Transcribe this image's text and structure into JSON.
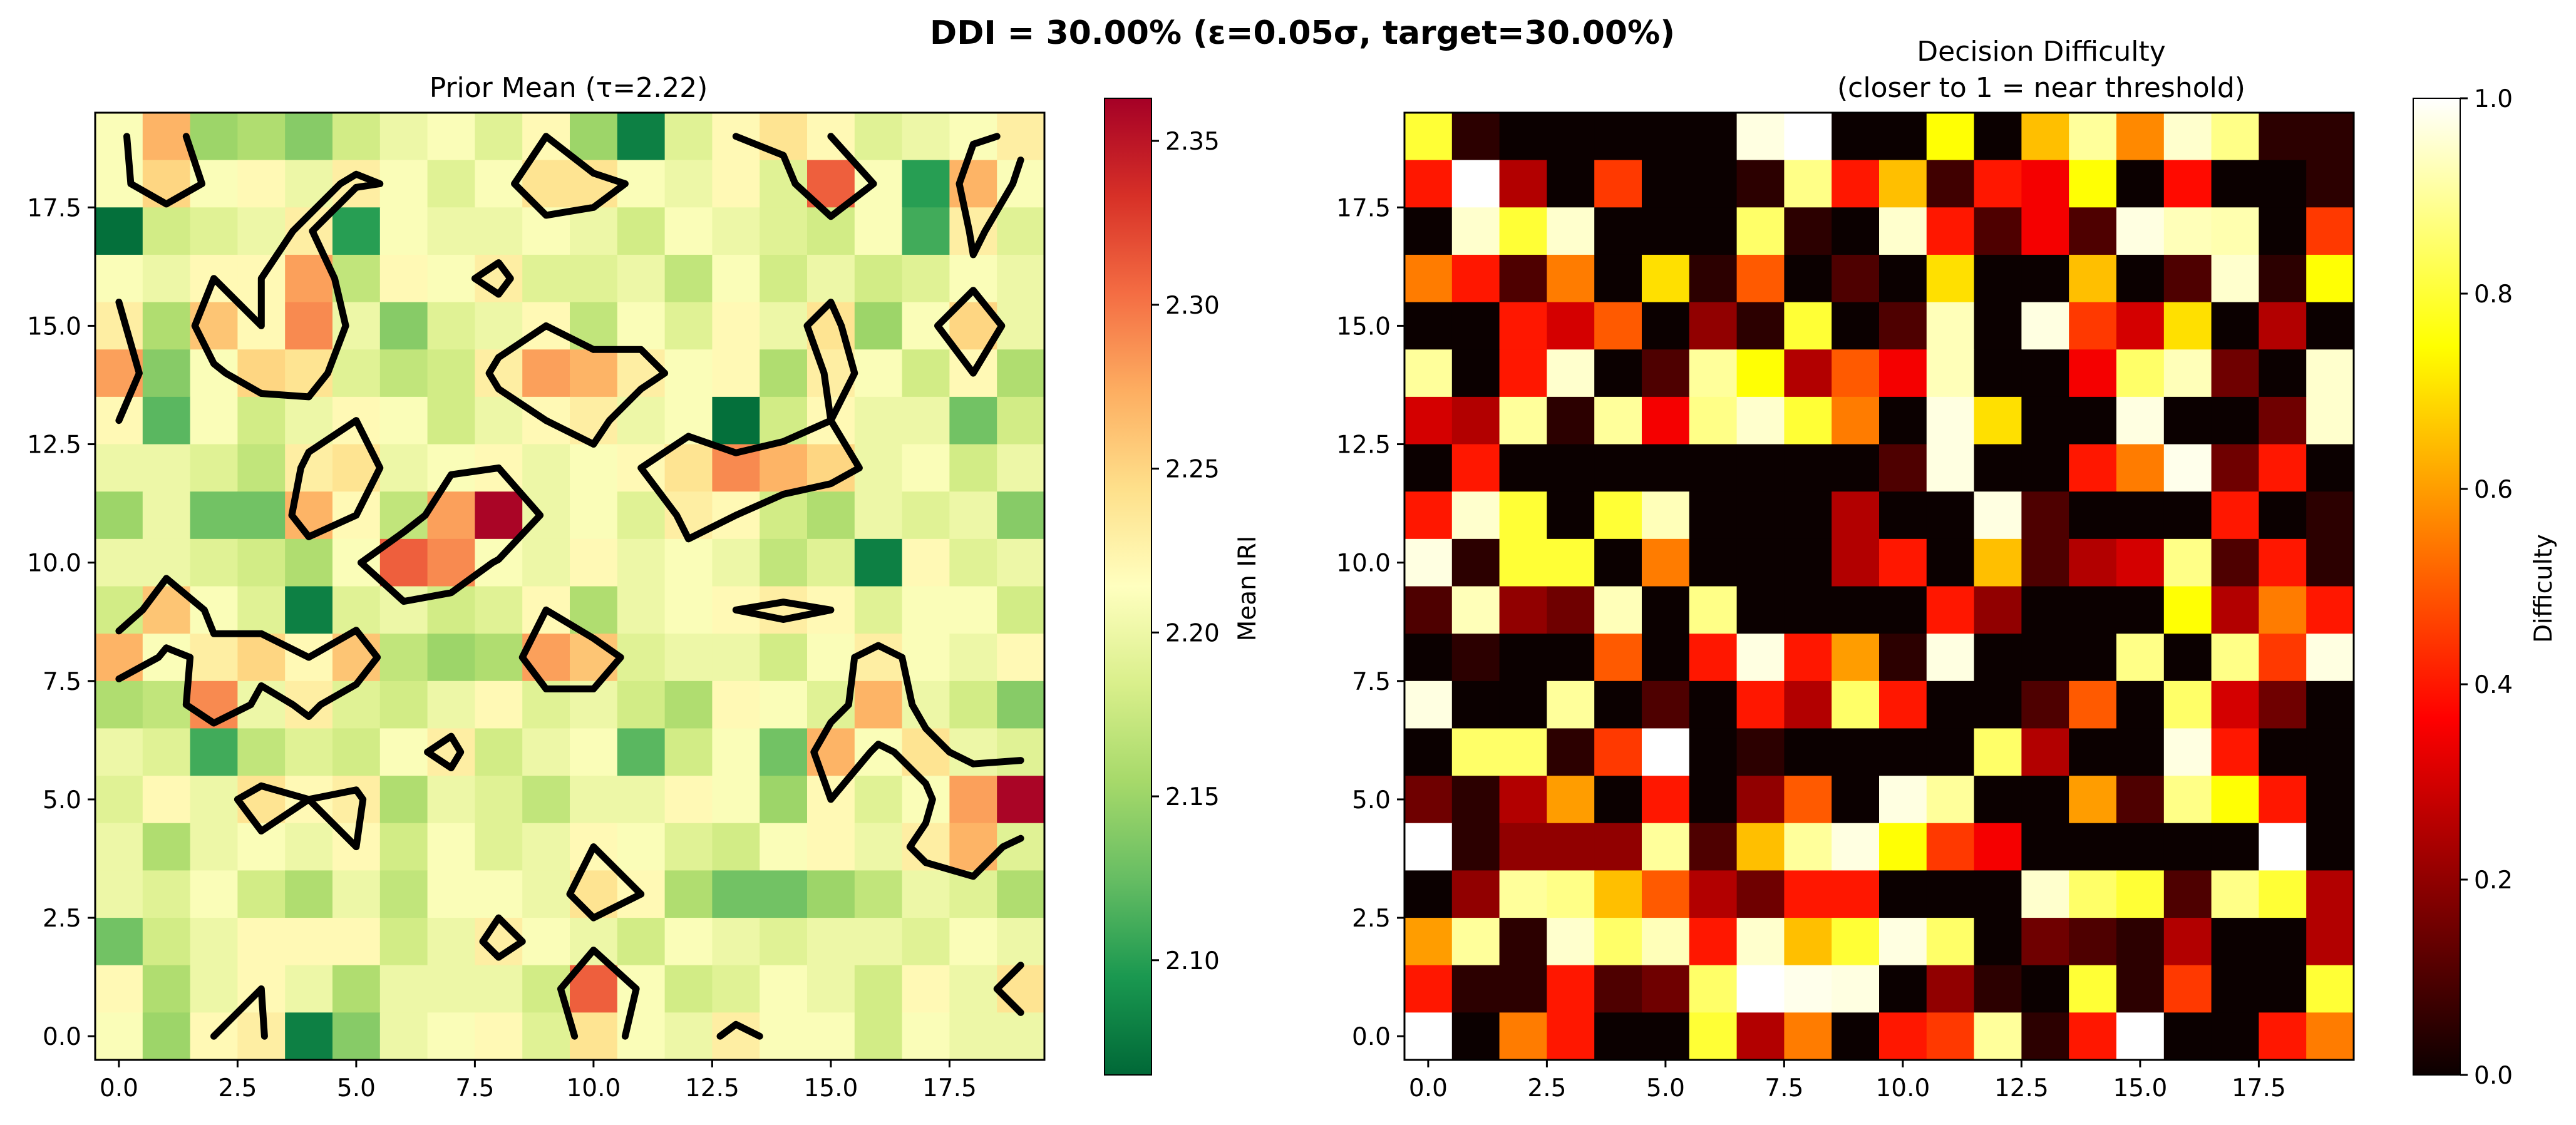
{
  "figure": {
    "suptitle": "DDI = 30.00% (ε=0.05σ, target=30.00%)"
  },
  "chart_data": [
    {
      "type": "heatmap",
      "title": "Prior Mean (τ=2.22)",
      "colormap": "RdYlGn_r",
      "xlim": [
        -0.5,
        19.5
      ],
      "ylim": [
        -0.5,
        19.5
      ],
      "x_ticks": [
        "0.0",
        "2.5",
        "5.0",
        "7.5",
        "10.0",
        "12.5",
        "15.0",
        "17.5"
      ],
      "y_ticks": [
        "0.0",
        "2.5",
        "5.0",
        "7.5",
        "10.0",
        "12.5",
        "15.0",
        "17.5"
      ],
      "colorbar_label": "Mean IRI",
      "colorbar_range": [
        2.065,
        2.363
      ],
      "colorbar_ticks": [
        "2.10",
        "2.15",
        "2.20",
        "2.25",
        "2.30",
        "2.35"
      ],
      "contour_level": 2.22,
      "contour_color": "#000000",
      "values_rows_top_to_bottom": [
        [
          2.21,
          2.27,
          2.15,
          2.16,
          2.14,
          2.18,
          2.2,
          2.21,
          2.19,
          2.22,
          2.15,
          2.08,
          2.19,
          2.22,
          2.24,
          2.22,
          2.19,
          2.2,
          2.21,
          2.23
        ],
        [
          2.21,
          2.25,
          2.21,
          2.22,
          2.2,
          2.23,
          2.21,
          2.19,
          2.21,
          2.24,
          2.24,
          2.21,
          2.2,
          2.22,
          2.19,
          2.31,
          2.21,
          2.1,
          2.27,
          2.21
        ],
        [
          2.07,
          2.18,
          2.19,
          2.2,
          2.23,
          2.1,
          2.21,
          2.2,
          2.2,
          2.21,
          2.2,
          2.18,
          2.21,
          2.2,
          2.19,
          2.18,
          2.21,
          2.11,
          2.23,
          2.19
        ],
        [
          2.21,
          2.2,
          2.22,
          2.22,
          2.28,
          2.17,
          2.22,
          2.21,
          2.23,
          2.19,
          2.19,
          2.2,
          2.17,
          2.21,
          2.18,
          2.2,
          2.18,
          2.19,
          2.21,
          2.2
        ],
        [
          2.23,
          2.16,
          2.26,
          2.22,
          2.29,
          2.2,
          2.14,
          2.19,
          2.2,
          2.22,
          2.17,
          2.21,
          2.19,
          2.22,
          2.2,
          2.24,
          2.15,
          2.21,
          2.25,
          2.2
        ],
        [
          2.28,
          2.14,
          2.21,
          2.25,
          2.24,
          2.19,
          2.17,
          2.18,
          2.23,
          2.28,
          2.27,
          2.23,
          2.21,
          2.22,
          2.16,
          2.23,
          2.21,
          2.18,
          2.22,
          2.16
        ],
        [
          2.22,
          2.12,
          2.21,
          2.18,
          2.2,
          2.22,
          2.21,
          2.18,
          2.2,
          2.22,
          2.23,
          2.2,
          2.21,
          2.07,
          2.18,
          2.22,
          2.2,
          2.2,
          2.13,
          2.18
        ],
        [
          2.2,
          2.2,
          2.19,
          2.17,
          2.23,
          2.24,
          2.2,
          2.21,
          2.22,
          2.2,
          2.21,
          2.22,
          2.24,
          2.29,
          2.27,
          2.25,
          2.2,
          2.21,
          2.18,
          2.2
        ],
        [
          2.15,
          2.2,
          2.13,
          2.13,
          2.27,
          2.22,
          2.17,
          2.28,
          2.36,
          2.2,
          2.21,
          2.19,
          2.23,
          2.22,
          2.18,
          2.16,
          2.2,
          2.19,
          2.2,
          2.14
        ],
        [
          2.2,
          2.2,
          2.19,
          2.18,
          2.16,
          2.21,
          2.31,
          2.29,
          2.21,
          2.2,
          2.22,
          2.2,
          2.21,
          2.2,
          2.17,
          2.19,
          2.08,
          2.22,
          2.19,
          2.2
        ],
        [
          2.18,
          2.26,
          2.21,
          2.19,
          2.08,
          2.19,
          2.2,
          2.18,
          2.19,
          2.22,
          2.16,
          2.2,
          2.21,
          2.22,
          2.23,
          2.22,
          2.19,
          2.21,
          2.21,
          2.18
        ],
        [
          2.27,
          2.21,
          2.23,
          2.25,
          2.22,
          2.26,
          2.17,
          2.15,
          2.16,
          2.28,
          2.26,
          2.19,
          2.2,
          2.2,
          2.18,
          2.21,
          2.23,
          2.21,
          2.2,
          2.22
        ],
        [
          2.16,
          2.17,
          2.29,
          2.2,
          2.23,
          2.19,
          2.18,
          2.2,
          2.22,
          2.19,
          2.2,
          2.18,
          2.16,
          2.22,
          2.21,
          2.19,
          2.27,
          2.2,
          2.18,
          2.14
        ],
        [
          2.2,
          2.19,
          2.11,
          2.17,
          2.19,
          2.18,
          2.21,
          2.23,
          2.18,
          2.2,
          2.21,
          2.12,
          2.18,
          2.21,
          2.13,
          2.27,
          2.21,
          2.24,
          2.2,
          2.19
        ],
        [
          2.19,
          2.22,
          2.2,
          2.24,
          2.22,
          2.23,
          2.16,
          2.2,
          2.19,
          2.17,
          2.2,
          2.2,
          2.22,
          2.21,
          2.15,
          2.22,
          2.19,
          2.21,
          2.28,
          2.36
        ],
        [
          2.2,
          2.16,
          2.2,
          2.21,
          2.2,
          2.22,
          2.18,
          2.21,
          2.19,
          2.2,
          2.22,
          2.21,
          2.19,
          2.18,
          2.21,
          2.22,
          2.2,
          2.23,
          2.27,
          2.19
        ],
        [
          2.2,
          2.19,
          2.21,
          2.18,
          2.16,
          2.2,
          2.17,
          2.21,
          2.21,
          2.2,
          2.24,
          2.22,
          2.16,
          2.13,
          2.13,
          2.15,
          2.17,
          2.2,
          2.19,
          2.16
        ],
        [
          2.13,
          2.18,
          2.2,
          2.22,
          2.22,
          2.22,
          2.18,
          2.2,
          2.23,
          2.21,
          2.2,
          2.18,
          2.21,
          2.2,
          2.19,
          2.2,
          2.2,
          2.19,
          2.21,
          2.2
        ],
        [
          2.22,
          2.16,
          2.2,
          2.22,
          2.2,
          2.16,
          2.2,
          2.2,
          2.2,
          2.18,
          2.31,
          2.21,
          2.18,
          2.19,
          2.21,
          2.2,
          2.18,
          2.22,
          2.2,
          2.24
        ],
        [
          2.21,
          2.15,
          2.22,
          2.23,
          2.08,
          2.14,
          2.2,
          2.21,
          2.22,
          2.19,
          2.24,
          2.21,
          2.2,
          2.23,
          2.21,
          2.21,
          2.18,
          2.21,
          2.2,
          2.2
        ]
      ]
    },
    {
      "type": "heatmap",
      "title": "Decision Difficulty",
      "subtitle": "(closer to 1 = near threshold)",
      "colormap": "hot",
      "xlim": [
        -0.5,
        19.5
      ],
      "ylim": [
        -0.5,
        19.5
      ],
      "x_ticks": [
        "0.0",
        "2.5",
        "5.0",
        "7.5",
        "10.0",
        "12.5",
        "15.0",
        "17.5"
      ],
      "y_ticks": [
        "0.0",
        "2.5",
        "5.0",
        "7.5",
        "10.0",
        "12.5",
        "15.0",
        "17.5"
      ],
      "colorbar_label": "Difficulty",
      "colorbar_range": [
        0.0,
        1.0
      ],
      "colorbar_ticks": [
        "0.0",
        "0.2",
        "0.4",
        "0.6",
        "0.8",
        "1.0"
      ],
      "values_rows_top_to_bottom": [
        [
          0.8,
          0.05,
          0.0,
          0.0,
          0.0,
          0.0,
          0.0,
          0.97,
          1.0,
          0.0,
          0.0,
          0.75,
          0.0,
          0.65,
          0.9,
          0.57,
          0.95,
          0.88,
          0.05,
          0.05
        ],
        [
          0.4,
          1.0,
          0.25,
          0.0,
          0.45,
          0.0,
          0.0,
          0.05,
          0.88,
          0.4,
          0.65,
          0.08,
          0.4,
          0.35,
          0.75,
          0.0,
          0.38,
          0.0,
          0.0,
          0.05
        ],
        [
          0.0,
          0.95,
          0.8,
          0.95,
          0.0,
          0.0,
          0.0,
          0.85,
          0.05,
          0.0,
          0.95,
          0.4,
          0.1,
          0.35,
          0.1,
          0.97,
          0.93,
          0.92,
          0.0,
          0.45
        ],
        [
          0.55,
          0.4,
          0.1,
          0.55,
          0.0,
          0.7,
          0.05,
          0.5,
          0.0,
          0.1,
          0.0,
          0.7,
          0.0,
          0.0,
          0.65,
          0.0,
          0.1,
          0.95,
          0.05,
          0.75
        ],
        [
          0.0,
          0.0,
          0.4,
          0.3,
          0.5,
          0.0,
          0.2,
          0.05,
          0.8,
          0.0,
          0.1,
          0.93,
          0.0,
          0.97,
          0.45,
          0.3,
          0.7,
          0.0,
          0.25,
          0.0
        ],
        [
          0.9,
          0.0,
          0.4,
          0.95,
          0.0,
          0.1,
          0.9,
          0.75,
          0.25,
          0.5,
          0.35,
          0.93,
          0.0,
          0.0,
          0.35,
          0.85,
          0.93,
          0.15,
          0.0,
          0.95
        ],
        [
          0.3,
          0.25,
          0.9,
          0.05,
          0.9,
          0.35,
          0.88,
          0.95,
          0.8,
          0.55,
          0.0,
          0.97,
          0.7,
          0.0,
          0.0,
          0.97,
          0.0,
          0.0,
          0.15,
          0.95
        ],
        [
          0.0,
          0.4,
          0.0,
          0.0,
          0.0,
          0.0,
          0.0,
          0.0,
          0.0,
          0.0,
          0.1,
          0.97,
          0.0,
          0.0,
          0.4,
          0.55,
          0.98,
          0.15,
          0.4,
          0.0
        ],
        [
          0.4,
          0.95,
          0.8,
          0.0,
          0.8,
          0.93,
          0.0,
          0.0,
          0.0,
          0.25,
          0.0,
          0.0,
          0.97,
          0.1,
          0.0,
          0.0,
          0.0,
          0.4,
          0.0,
          0.05
        ],
        [
          0.97,
          0.05,
          0.8,
          0.8,
          0.0,
          0.55,
          0.0,
          0.0,
          0.0,
          0.25,
          0.4,
          0.0,
          0.65,
          0.1,
          0.25,
          0.3,
          0.88,
          0.1,
          0.4,
          0.05
        ],
        [
          0.1,
          0.93,
          0.2,
          0.15,
          0.93,
          0.0,
          0.88,
          0.0,
          0.0,
          0.0,
          0.0,
          0.4,
          0.2,
          0.0,
          0.0,
          0.0,
          0.75,
          0.25,
          0.55,
          0.4
        ],
        [
          0.0,
          0.05,
          0.0,
          0.0,
          0.5,
          0.0,
          0.4,
          0.97,
          0.4,
          0.6,
          0.05,
          0.97,
          0.0,
          0.0,
          0.0,
          0.88,
          0.0,
          0.88,
          0.45,
          0.97
        ],
        [
          0.97,
          0.0,
          0.0,
          0.9,
          0.0,
          0.1,
          0.0,
          0.4,
          0.25,
          0.85,
          0.4,
          0.0,
          0.0,
          0.1,
          0.5,
          0.0,
          0.85,
          0.3,
          0.15,
          0.0
        ],
        [
          0.0,
          0.85,
          0.85,
          0.05,
          0.45,
          1.0,
          0.0,
          0.05,
          0.0,
          0.0,
          0.0,
          0.0,
          0.85,
          0.25,
          0.0,
          0.0,
          0.97,
          0.4,
          0.0,
          0.0
        ],
        [
          0.15,
          0.05,
          0.25,
          0.6,
          0.0,
          0.4,
          0.0,
          0.2,
          0.5,
          0.0,
          0.97,
          0.9,
          0.0,
          0.0,
          0.6,
          0.1,
          0.88,
          0.75,
          0.4,
          0.0
        ],
        [
          1.0,
          0.05,
          0.2,
          0.2,
          0.2,
          0.9,
          0.1,
          0.65,
          0.9,
          0.97,
          0.75,
          0.45,
          0.35,
          0.0,
          0.0,
          0.0,
          0.0,
          0.0,
          1.0,
          0.0
        ],
        [
          0.0,
          0.2,
          0.9,
          0.88,
          0.65,
          0.5,
          0.25,
          0.15,
          0.4,
          0.4,
          0.0,
          0.0,
          0.0,
          0.95,
          0.85,
          0.8,
          0.1,
          0.88,
          0.8,
          0.25
        ],
        [
          0.6,
          0.9,
          0.05,
          0.95,
          0.85,
          0.93,
          0.4,
          0.95,
          0.65,
          0.8,
          0.97,
          0.85,
          0.0,
          0.15,
          0.1,
          0.05,
          0.25,
          0.0,
          0.0,
          0.25
        ],
        [
          0.4,
          0.05,
          0.05,
          0.4,
          0.1,
          0.15,
          0.85,
          1.0,
          0.98,
          0.97,
          0.0,
          0.2,
          0.05,
          0.0,
          0.8,
          0.05,
          0.45,
          0.0,
          0.0,
          0.8
        ],
        [
          1.0,
          0.0,
          0.55,
          0.4,
          0.0,
          0.0,
          0.8,
          0.25,
          0.55,
          0.0,
          0.4,
          0.45,
          0.9,
          0.05,
          0.4,
          1.0,
          0.0,
          0.0,
          0.4,
          0.55
        ]
      ]
    }
  ]
}
